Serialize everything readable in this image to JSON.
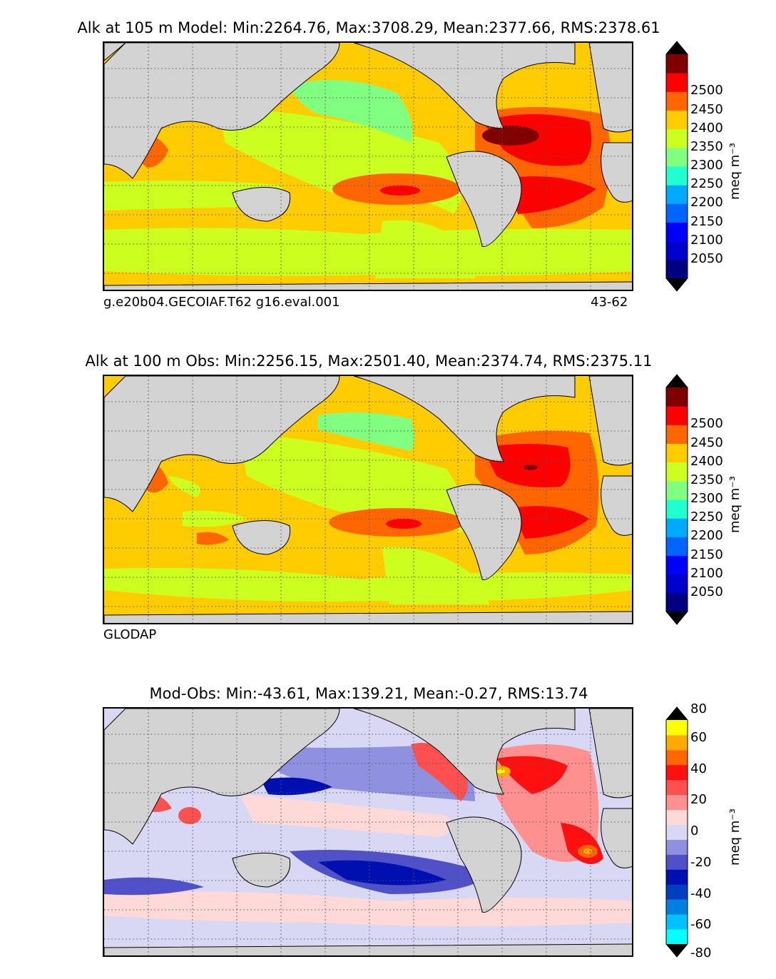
{
  "panels": [
    {
      "title": "Alk at 105 m Model: Min:2264.76, Max:3708.29, Mean:2377.66, RMS:2378.61",
      "caption_left": "g.e20b04.GECOIAF.T62 g16.eval.001",
      "caption_right": "43-62",
      "colorbar": {
        "colors": [
          "#000080",
          "#0000cd",
          "#0000ff",
          "#0064ff",
          "#00aaff",
          "#20ffd0",
          "#80ff80",
          "#ccff20",
          "#ffcc00",
          "#ff6600",
          "#ff0000",
          "#800000"
        ],
        "under_color": "#000000",
        "over_color": "#000000",
        "ticks": [
          "2050",
          "2100",
          "2150",
          "2200",
          "2250",
          "2300",
          "2350",
          "2400",
          "2450",
          "2500"
        ],
        "unit": "meq m⁻³"
      }
    },
    {
      "title": "Alk at 100 m Obs: Min:2256.15, Max:2501.40, Mean:2374.74, RMS:2375.11",
      "caption_left": "GLODAP",
      "caption_right": "",
      "colorbar": {
        "colors": [
          "#000080",
          "#0000cd",
          "#0000ff",
          "#0064ff",
          "#00aaff",
          "#20ffd0",
          "#80ff80",
          "#ccff20",
          "#ffcc00",
          "#ff6600",
          "#ff0000",
          "#800000"
        ],
        "under_color": "#000000",
        "over_color": "#000000",
        "ticks": [
          "2050",
          "2100",
          "2150",
          "2200",
          "2250",
          "2300",
          "2350",
          "2400",
          "2450",
          "2500"
        ],
        "unit": "meq m⁻³"
      }
    },
    {
      "title": "Mod-Obs: Min:-43.61, Max:139.21, Mean:-0.27, RMS:13.74",
      "caption_left": "",
      "caption_right": "",
      "colorbar": {
        "colors": [
          "#00ffff",
          "#00c0ff",
          "#0080e0",
          "#0040c0",
          "#0010b0",
          "#5050c8",
          "#9090e0",
          "#d8d8f4",
          "#ffd8d8",
          "#ff9090",
          "#ff5050",
          "#ff1010",
          "#ff6600",
          "#ffaa00",
          "#ffff00"
        ],
        "under_color": "#000000",
        "over_color": "#000000",
        "ticks": [
          "-80",
          "-60",
          "-40",
          "-20",
          "0",
          "20",
          "40",
          "60",
          "80"
        ],
        "unit": "meq m⁻³"
      }
    }
  ],
  "chart_data": [
    {
      "type": "heatmap",
      "title": "Alk at 105 m Model: Min:2264.76, Max:3708.29, Mean:2377.66, RMS:2378.61",
      "variable": "Alk",
      "depth_m": 105,
      "stats": {
        "min": 2264.76,
        "max": 3708.29,
        "mean": 2377.66,
        "rms": 2378.61
      },
      "colorbar_levels": [
        2050,
        2100,
        2150,
        2200,
        2250,
        2300,
        2350,
        2400,
        2450,
        2500
      ],
      "unit": "meq m⁻³",
      "xlim": [
        20,
        380
      ],
      "ylim": [
        -80,
        90
      ],
      "grid": true
    },
    {
      "type": "heatmap",
      "title": "Alk at 100 m Obs: Min:2256.15, Max:2501.40, Mean:2374.74, RMS:2375.11",
      "variable": "Alk",
      "depth_m": 100,
      "stats": {
        "min": 2256.15,
        "max": 2501.4,
        "mean": 2374.74,
        "rms": 2375.11
      },
      "colorbar_levels": [
        2050,
        2100,
        2150,
        2200,
        2250,
        2300,
        2350,
        2400,
        2450,
        2500
      ],
      "unit": "meq m⁻³",
      "xlim": [
        20,
        380
      ],
      "ylim": [
        -80,
        90
      ],
      "grid": true
    },
    {
      "type": "heatmap",
      "title": "Mod-Obs: Min:-43.61, Max:139.21, Mean:-0.27, RMS:13.74",
      "variable": "Alk difference",
      "stats": {
        "min": -43.61,
        "max": 139.21,
        "mean": -0.27,
        "rms": 13.74
      },
      "colorbar_levels": [
        -80,
        -70,
        -60,
        -50,
        -40,
        -30,
        -20,
        -10,
        0,
        10,
        20,
        30,
        40,
        50,
        60,
        70,
        80
      ],
      "unit": "meq m⁻³",
      "xlim": [
        20,
        380
      ],
      "ylim": [
        -80,
        90
      ],
      "grid": true
    }
  ]
}
